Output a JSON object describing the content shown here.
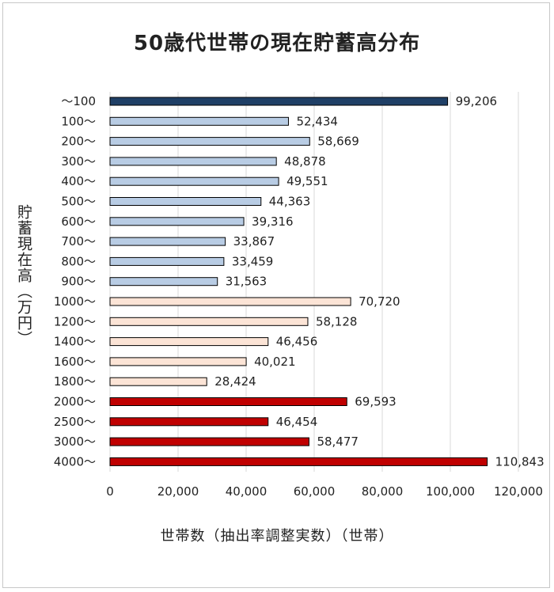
{
  "chart_data": {
    "type": "bar",
    "orientation": "horizontal",
    "title": "50歳代世帯の現在貯蓄高分布",
    "xlabel": "世帯数（抽出率調整実数）（世帯）",
    "ylabel": "貯蓄現在高（万円）",
    "xlim": [
      0,
      120000
    ],
    "xticks": [
      "0",
      "20,000",
      "40,000",
      "60,000",
      "80,000",
      "100,000",
      "120,000"
    ],
    "xtick_values": [
      0,
      20000,
      40000,
      60000,
      80000,
      100000,
      120000
    ],
    "grid": true,
    "categories": [
      "～100",
      "100～",
      "200～",
      "300～",
      "400～",
      "500～",
      "600～",
      "700～",
      "800～",
      "900～",
      "1000～",
      "1200～",
      "1400～",
      "1600～",
      "1800～",
      "2000～",
      "2500～",
      "3000～",
      "4000～"
    ],
    "values": [
      99206,
      52434,
      58669,
      48878,
      49551,
      44363,
      39316,
      33867,
      33459,
      31563,
      70720,
      58128,
      46456,
      40021,
      28424,
      69593,
      46454,
      58477,
      110843
    ],
    "value_labels": [
      "99,206",
      "52,434",
      "58,669",
      "48,878",
      "49,551",
      "44,363",
      "39,316",
      "33,867",
      "33,459",
      "31,563",
      "70,720",
      "58,128",
      "46,456",
      "40,021",
      "28,424",
      "69,593",
      "46,454",
      "58,477",
      "110,843"
    ],
    "bar_colors": [
      "#1f3f66",
      "#b8cce4",
      "#b8cce4",
      "#b8cce4",
      "#b8cce4",
      "#b8cce4",
      "#b8cce4",
      "#b8cce4",
      "#b8cce4",
      "#b8cce4",
      "#fce4d6",
      "#fce4d6",
      "#fce4d6",
      "#fce4d6",
      "#fce4d6",
      "#c00000",
      "#c00000",
      "#c00000",
      "#c00000"
    ],
    "bar_edge_color": "#000000",
    "grid_color": "#d9d9d9"
  }
}
